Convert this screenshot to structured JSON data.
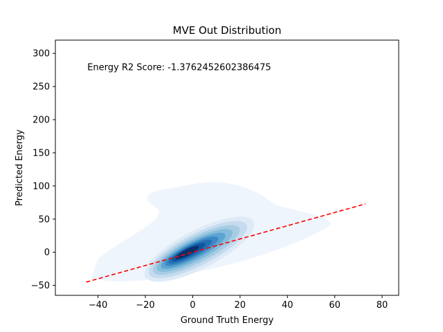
{
  "chart_data": {
    "type": "kde",
    "title": "MVE Out Distribution",
    "xlabel": "Ground Truth Energy",
    "ylabel": "Predicted Energy",
    "xlim": [
      -58,
      87
    ],
    "ylim": [
      -65,
      320
    ],
    "xticks": [
      -40,
      -20,
      0,
      20,
      40,
      60,
      80
    ],
    "yticks": [
      -50,
      0,
      50,
      100,
      150,
      200,
      250,
      300
    ],
    "grid": false,
    "annotation": {
      "text": "Energy R2 Score: -1.3762452602386475",
      "x": -44.5,
      "y": 280
    },
    "reference_line": {
      "x": [
        -45,
        73
      ],
      "y": [
        -45,
        73
      ],
      "color": "#ff0000",
      "style": "dashed"
    },
    "density": {
      "colormap": "Blues",
      "peak": {
        "x": -3,
        "y": -1
      },
      "levels": 10
    }
  }
}
